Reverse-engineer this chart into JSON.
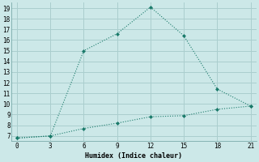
{
  "xlabel": "Humidex (Indice chaleur)",
  "ylabel": "",
  "background_color": "#cce8e8",
  "grid_color": "#aacece",
  "line_color": "#1a7a6a",
  "xlim": [
    -0.5,
    21.5
  ],
  "ylim": [
    6.5,
    19.5
  ],
  "xticks": [
    0,
    3,
    6,
    9,
    12,
    15,
    18,
    21
  ],
  "yticks": [
    7,
    8,
    9,
    10,
    11,
    12,
    13,
    14,
    15,
    16,
    17,
    18,
    19
  ],
  "line1_x": [
    0,
    3,
    6,
    9,
    12,
    15,
    18,
    21
  ],
  "line1_y": [
    6.8,
    7.0,
    15.0,
    16.6,
    19.1,
    16.4,
    11.4,
    9.8
  ],
  "line2_x": [
    0,
    3,
    6,
    9,
    12,
    15,
    18,
    21
  ],
  "line2_y": [
    6.8,
    7.0,
    7.7,
    8.2,
    8.8,
    8.9,
    9.5,
    9.8
  ]
}
